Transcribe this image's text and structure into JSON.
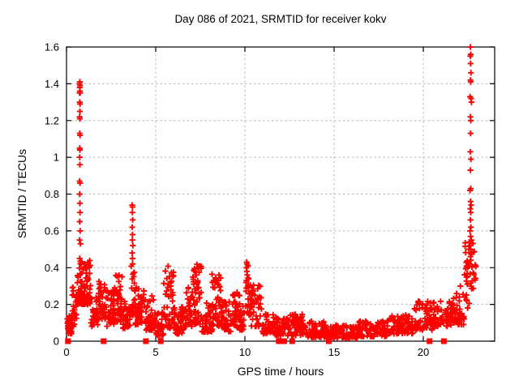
{
  "chart_data": {
    "type": "scatter",
    "title": "Day 086 of 2021, SRMTID for receiver kokv",
    "xlabel": "GPS time / hours",
    "ylabel": "SRMTID / TECUs",
    "xlim": [
      0,
      24
    ],
    "ylim": [
      0,
      1.6
    ],
    "xticks": {
      "values": [
        0,
        5,
        10,
        15,
        20
      ],
      "labels": [
        "0",
        "5",
        "10",
        "15",
        "20"
      ]
    },
    "yticks": {
      "values": [
        0,
        0.2,
        0.4,
        0.6,
        0.8,
        1,
        1.2,
        1.4,
        1.6
      ],
      "labels": [
        "0",
        "0.2",
        "0.4",
        "0.6",
        "0.8",
        "1",
        "1.2",
        "1.4",
        "1.6"
      ]
    },
    "grid": true,
    "legend": "none",
    "colors": {
      "marker": "#ff0000",
      "grid": "#b8b8b8",
      "frame": "#000000",
      "background": "#ffffff"
    },
    "render_seed": 987654321,
    "series": [
      {
        "name": "srmtid",
        "marker": "plus",
        "bands": [
          [
            0.02,
            0.3,
            0.04,
            0.14,
            40
          ],
          [
            0.3,
            0.58,
            0.08,
            0.3,
            25
          ],
          [
            0.58,
            0.8,
            0.2,
            0.46,
            22
          ],
          [
            0.8,
            1.35,
            0.2,
            0.44,
            70
          ],
          [
            1.35,
            1.75,
            0.08,
            0.24,
            30
          ],
          [
            1.75,
            2.2,
            0.12,
            0.33,
            40
          ],
          [
            2.2,
            2.65,
            0.08,
            0.28,
            40
          ],
          [
            2.65,
            3.15,
            0.1,
            0.37,
            50
          ],
          [
            3.15,
            3.55,
            0.07,
            0.22,
            30
          ],
          [
            3.55,
            3.85,
            0.14,
            0.45,
            25
          ],
          [
            3.85,
            4.35,
            0.09,
            0.3,
            45
          ],
          [
            4.35,
            4.95,
            0.06,
            0.25,
            45
          ],
          [
            4.95,
            5.45,
            0.03,
            0.16,
            35
          ],
          [
            5.45,
            6.1,
            0.07,
            0.42,
            55
          ],
          [
            6.1,
            6.65,
            0.04,
            0.19,
            40
          ],
          [
            6.65,
            7.05,
            0.08,
            0.31,
            35
          ],
          [
            7.05,
            7.6,
            0.09,
            0.42,
            50
          ],
          [
            7.6,
            8.15,
            0.05,
            0.21,
            40
          ],
          [
            8.15,
            8.7,
            0.08,
            0.37,
            50
          ],
          [
            8.7,
            9.2,
            0.05,
            0.23,
            35
          ],
          [
            9.2,
            9.7,
            0.07,
            0.27,
            35
          ],
          [
            9.7,
            10.02,
            0.06,
            0.21,
            25
          ],
          [
            10.02,
            10.3,
            0.14,
            0.44,
            22
          ],
          [
            10.3,
            10.95,
            0.08,
            0.31,
            45
          ],
          [
            10.95,
            11.65,
            0.04,
            0.16,
            45
          ],
          [
            11.65,
            12.45,
            0.03,
            0.13,
            50
          ],
          [
            12.45,
            13.45,
            0.03,
            0.15,
            65
          ],
          [
            13.45,
            14.6,
            0.02,
            0.11,
            70
          ],
          [
            14.6,
            16.3,
            0.015,
            0.09,
            100
          ],
          [
            16.3,
            18.0,
            0.025,
            0.11,
            100
          ],
          [
            18.0,
            19.5,
            0.04,
            0.16,
            90
          ],
          [
            19.5,
            20.6,
            0.06,
            0.22,
            70
          ],
          [
            20.6,
            21.7,
            0.08,
            0.22,
            65
          ],
          [
            21.7,
            22.3,
            0.09,
            0.3,
            40
          ],
          [
            22.3,
            22.6,
            0.18,
            0.55,
            25
          ],
          [
            22.6,
            22.95,
            0.28,
            0.55,
            20
          ]
        ],
        "peak_points": [
          [
            0.75,
            1.41
          ],
          [
            0.73,
            1.4
          ],
          [
            0.76,
            1.39
          ],
          [
            0.74,
            1.38
          ],
          [
            0.75,
            1.36
          ],
          [
            0.73,
            1.35
          ],
          [
            0.77,
            1.35
          ],
          [
            0.74,
            1.3
          ],
          [
            0.76,
            1.29
          ],
          [
            0.75,
            1.25
          ],
          [
            0.73,
            1.22
          ],
          [
            0.75,
            1.21
          ],
          [
            0.74,
            1.13
          ],
          [
            0.76,
            1.12
          ],
          [
            0.74,
            1.05
          ],
          [
            0.75,
            1.04
          ],
          [
            0.74,
            1.0
          ],
          [
            0.75,
            0.96
          ],
          [
            0.73,
            0.87
          ],
          [
            0.76,
            0.86
          ],
          [
            0.74,
            0.8
          ],
          [
            0.75,
            0.75
          ],
          [
            0.76,
            0.7
          ],
          [
            0.74,
            0.65
          ],
          [
            0.77,
            0.6
          ],
          [
            0.73,
            0.55
          ],
          [
            0.78,
            0.53
          ],
          [
            0.74,
            0.45
          ],
          [
            3.68,
            0.74
          ],
          [
            3.7,
            0.73
          ],
          [
            3.69,
            0.7
          ],
          [
            3.71,
            0.66
          ],
          [
            3.68,
            0.62
          ],
          [
            3.7,
            0.58
          ],
          [
            3.69,
            0.55
          ],
          [
            3.72,
            0.52
          ],
          [
            3.68,
            0.48
          ],
          [
            3.7,
            0.45
          ],
          [
            3.71,
            0.42
          ],
          [
            10.1,
            0.43
          ],
          [
            10.12,
            0.42
          ],
          [
            10.08,
            0.4
          ],
          [
            10.11,
            0.38
          ],
          [
            10.13,
            0.36
          ],
          [
            10.09,
            0.33
          ],
          [
            22.64,
            1.6
          ],
          [
            22.66,
            1.56
          ],
          [
            22.63,
            1.55
          ],
          [
            22.65,
            1.51
          ],
          [
            22.67,
            1.46
          ],
          [
            22.64,
            1.42
          ],
          [
            22.66,
            1.41
          ],
          [
            22.62,
            1.33
          ],
          [
            22.68,
            1.32
          ],
          [
            22.7,
            1.3
          ],
          [
            22.64,
            1.22
          ],
          [
            22.66,
            1.2
          ],
          [
            22.65,
            1.13
          ],
          [
            22.63,
            1.03
          ],
          [
            22.67,
            0.99
          ],
          [
            22.64,
            0.93
          ],
          [
            22.66,
            0.83
          ],
          [
            22.62,
            0.82
          ],
          [
            22.65,
            0.76
          ],
          [
            22.68,
            0.74
          ],
          [
            22.63,
            0.72
          ],
          [
            22.66,
            0.7
          ],
          [
            22.64,
            0.66
          ],
          [
            22.67,
            0.62
          ],
          [
            22.62,
            0.6
          ],
          [
            22.65,
            0.57
          ],
          [
            22.69,
            0.55
          ],
          [
            22.63,
            0.52
          ],
          [
            22.66,
            0.5
          ],
          [
            22.7,
            0.48
          ],
          [
            22.64,
            0.46
          ],
          [
            22.67,
            0.44
          ],
          [
            22.61,
            0.42
          ]
        ]
      },
      {
        "name": "zero-flags",
        "marker": "filled-square",
        "y": 0,
        "x": [
          0.08,
          2.08,
          4.45,
          5.28,
          11.9,
          12.2,
          12.65,
          14.7,
          20.35,
          21.15
        ]
      }
    ]
  }
}
